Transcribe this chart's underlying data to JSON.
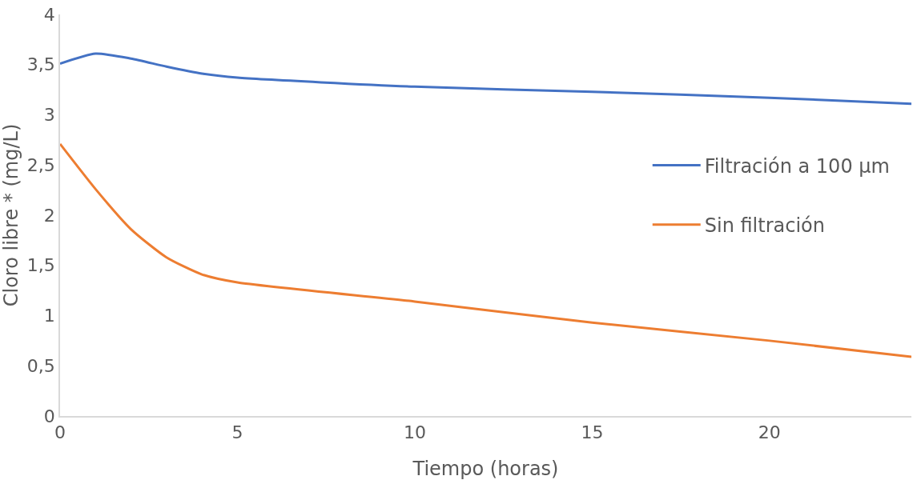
{
  "chart_data": {
    "type": "line",
    "xlabel": "Tiempo (horas)",
    "ylabel": "Cloro libre * (mg/L)",
    "xlim": [
      0,
      24
    ],
    "xticks": [
      0,
      5,
      10,
      15,
      20
    ],
    "ylim": [
      0,
      4
    ],
    "yticks": [
      0,
      {
        "value": 0.5,
        "label": "0,5"
      },
      1,
      {
        "value": 1.5,
        "label": "1,5"
      },
      2,
      {
        "value": 2.5,
        "label": "2,5"
      },
      3,
      {
        "value": 3.5,
        "label": "3,5"
      },
      4
    ],
    "legend": "right",
    "marker": "none",
    "line_style": "solid",
    "series": [
      {
        "name": "Filtración a 100 µm",
        "color": "#4472c4",
        "x": [
          0,
          1,
          2,
          3,
          4,
          5,
          10,
          15,
          20,
          24
        ],
        "values": [
          3.51,
          3.61,
          3.56,
          3.48,
          3.41,
          3.37,
          3.28,
          3.23,
          3.17,
          3.11
        ]
      },
      {
        "name": "Sin filtración",
        "color": "#ed7d31",
        "x": [
          0,
          1,
          2,
          3,
          4,
          5,
          10,
          15,
          20,
          24
        ],
        "values": [
          2.71,
          2.26,
          1.86,
          1.58,
          1.41,
          1.33,
          1.14,
          0.93,
          0.75,
          0.59
        ]
      }
    ]
  }
}
